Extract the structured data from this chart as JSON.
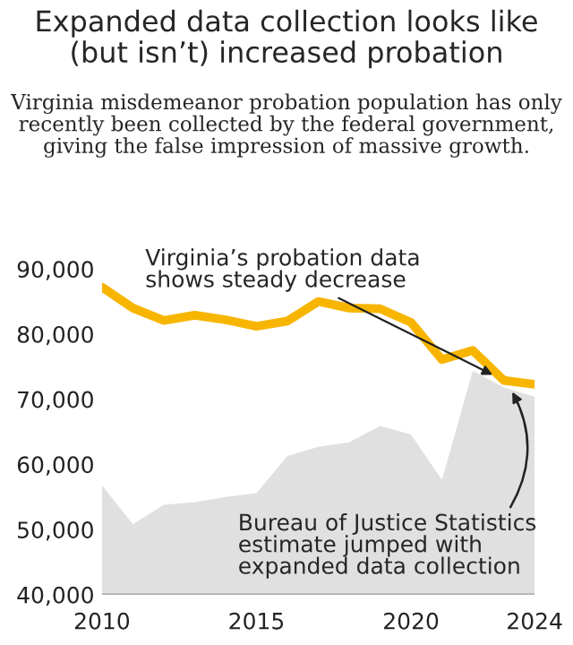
{
  "chart_data": {
    "type": "line",
    "title": "Expanded data collection looks like\n(but isn’t) increased probation",
    "subtitle": "Virginia misdemeanor probation population has only recently been collected by the federal government, giving the false impression of massive growth.",
    "x": [
      2010,
      2011,
      2012,
      2013,
      2014,
      2015,
      2016,
      2017,
      2018,
      2019,
      2020,
      2021,
      2022,
      2023,
      2024
    ],
    "series": [
      {
        "type": "area",
        "color": "#e0e0e0",
        "values": [
          56800,
          50800,
          53800,
          54200,
          55000,
          55600,
          61300,
          62700,
          63400,
          65900,
          64600,
          57600,
          74400,
          71800,
          70400
        ]
      },
      {
        "color": "#f7b500",
        "values": [
          87200,
          84000,
          82100,
          82900,
          82200,
          81200,
          82000,
          85000,
          84000,
          83900,
          81800,
          76100,
          77500,
          72900,
          72300
        ]
      }
    ],
    "xlim": [
      2010,
      2024
    ],
    "xticks": [
      2010,
      2015,
      2020,
      2024
    ],
    "ylim": [
      40000,
      90000
    ],
    "yticks": [
      {
        "value": 40000,
        "label": "40,000"
      },
      {
        "value": 50000,
        "label": "50,000"
      },
      {
        "value": 60000,
        "label": "60,000"
      },
      {
        "value": 70000,
        "label": "70,000"
      },
      {
        "value": 80000,
        "label": "80,000"
      },
      {
        "value": 90000,
        "label": "90,000"
      }
    ],
    "grid": false,
    "legend": false,
    "annotations": [
      {
        "text": "Virginia’s probation data\nshows steady decrease",
        "x": 2023,
        "y": 72900
      },
      {
        "text": "Bureau of Justice Statistics\nestimate jumped with\nexpanded data collection",
        "x": 2023.2,
        "y": 71800
      }
    ]
  }
}
